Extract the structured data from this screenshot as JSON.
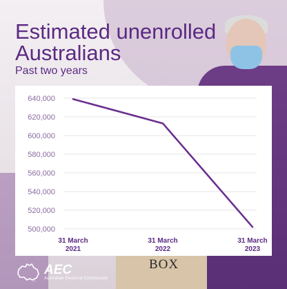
{
  "title": "Estimated unenrolled Australians",
  "subtitle": "Past two years",
  "box_label": "BOX",
  "logo": {
    "abbr": "AEC",
    "full": "Australian Electoral Commission"
  },
  "colors": {
    "accent": "#5b2a82",
    "line": "#6a2f8f",
    "tick": "#8a6aa0"
  },
  "chart_data": {
    "type": "line",
    "categories": [
      "31 March 2021",
      "31 March 2022",
      "31 March 2023"
    ],
    "category_lines": [
      [
        "31 March",
        "2021"
      ],
      [
        "31 March",
        "2022"
      ],
      [
        "31 March",
        "2023"
      ]
    ],
    "series": [
      {
        "values": [
          639000,
          613000,
          502000
        ]
      }
    ],
    "y_ticks": [
      "640,000",
      "620,000",
      "600,000",
      "580,000",
      "560,000",
      "540,000",
      "520,000",
      "500,000"
    ],
    "ylim": [
      500000,
      640000
    ],
    "grid": true,
    "legend": "none"
  }
}
